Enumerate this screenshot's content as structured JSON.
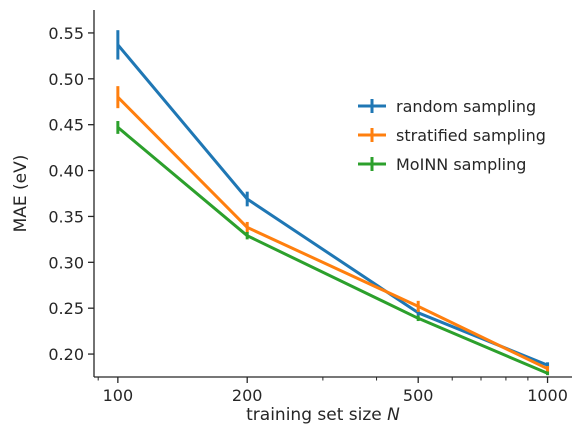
{
  "chart_data": {
    "type": "line",
    "xscale": "log",
    "x": [
      100,
      200,
      500,
      1000
    ],
    "xticks": [
      "100",
      "200",
      "500",
      "1000"
    ],
    "xlim": [
      88,
      1140
    ],
    "ylim": [
      0.175,
      0.575
    ],
    "yticks": [
      "0.20",
      "0.25",
      "0.30",
      "0.35",
      "0.40",
      "0.45",
      "0.50",
      "0.55"
    ],
    "xlabel": "training set size",
    "xlabel_var": "N",
    "ylabel": "MAE (eV)",
    "grid": false,
    "legend_position": "right",
    "series": [
      {
        "name": "random sampling",
        "color": "#1f77b4",
        "values": [
          0.537,
          0.369,
          0.245,
          0.188
        ],
        "errors": [
          0.016,
          0.008,
          0.003,
          0.003
        ]
      },
      {
        "name": "stratified sampling",
        "color": "#ff7f0e",
        "values": [
          0.48,
          0.338,
          0.252,
          0.184
        ],
        "errors": [
          0.012,
          0.006,
          0.006,
          0.003
        ]
      },
      {
        "name": "MoINN sampling",
        "color": "#2ca02c",
        "values": [
          0.447,
          0.329,
          0.239,
          0.179
        ],
        "errors": [
          0.007,
          0.004,
          0.003,
          0.002
        ]
      }
    ]
  }
}
